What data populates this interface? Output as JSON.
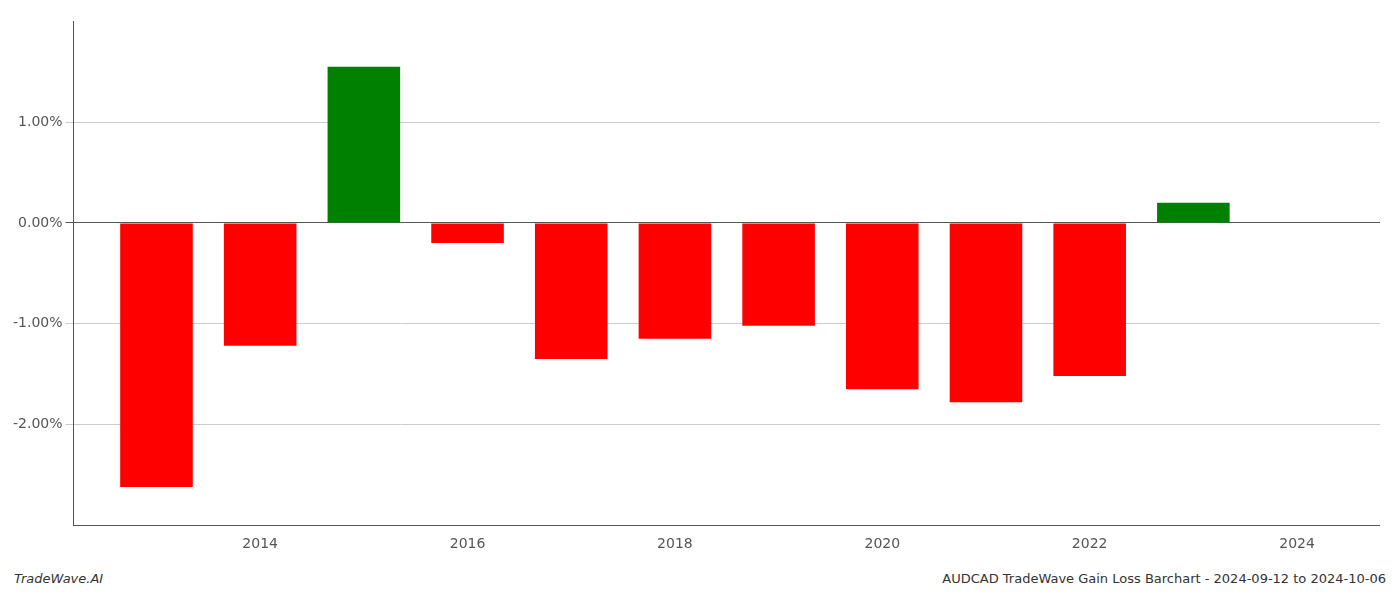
{
  "chart_data": {
    "type": "bar",
    "x": [
      2013,
      2014,
      2015,
      2016,
      2017,
      2018,
      2019,
      2020,
      2021,
      2022,
      2023
    ],
    "values": [
      -2.62,
      -1.22,
      1.55,
      -0.2,
      -1.35,
      -1.15,
      -1.02,
      -1.65,
      -1.78,
      -1.52,
      0.2
    ],
    "colors": [
      "#ff0000",
      "#ff0000",
      "#008000",
      "#ff0000",
      "#ff0000",
      "#ff0000",
      "#ff0000",
      "#ff0000",
      "#ff0000",
      "#ff0000",
      "#008000"
    ],
    "xlim": [
      2012.2,
      2024.8
    ],
    "xticks": [
      2014,
      2016,
      2018,
      2020,
      2022,
      2024
    ],
    "ylim": [
      -3.0,
      2.0
    ],
    "yticks": [
      {
        "value": -2.0,
        "label": "-2.00%"
      },
      {
        "value": -1.0,
        "label": "-1.00%"
      },
      {
        "value": 0.0,
        "label": "0.00%"
      },
      {
        "value": 1.0,
        "label": "1.00%"
      }
    ],
    "grid": "y",
    "annotations": [
      "TradeWave.AI",
      "AUDCAD TradeWave Gain Loss Barchart - 2024-09-12 to 2024-10-06"
    ]
  }
}
